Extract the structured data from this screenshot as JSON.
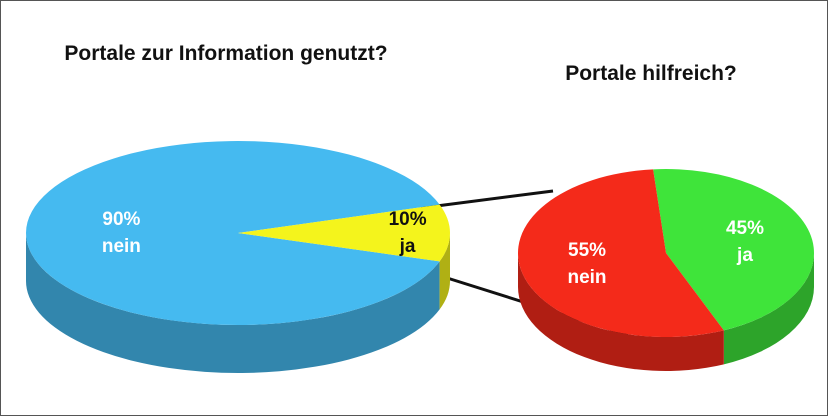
{
  "chart_data": [
    {
      "type": "pie",
      "title": "Portale zur Information genutzt?",
      "categories": [
        "nein",
        "ja"
      ],
      "values": [
        90,
        10
      ],
      "value_labels": [
        "90%",
        "10%"
      ],
      "colors": [
        "#45baf0",
        "#f4f41c"
      ],
      "label_colors": [
        "#ffffff",
        "#111111"
      ]
    },
    {
      "type": "pie",
      "title": "Portale hilfreich?",
      "categories": [
        "ja",
        "nein"
      ],
      "values": [
        45,
        55
      ],
      "value_labels": [
        "45%",
        "55%"
      ],
      "colors": [
        "#3fe43a",
        "#f42a1a"
      ],
      "label_colors": [
        "#ffffff",
        "#ffffff"
      ]
    }
  ]
}
